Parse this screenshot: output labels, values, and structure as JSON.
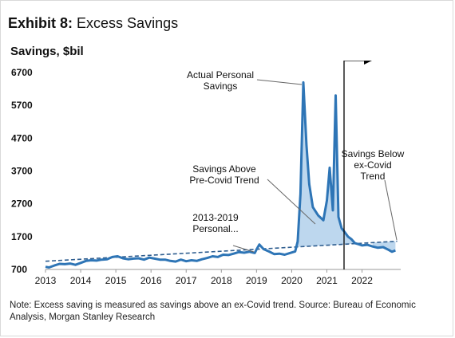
{
  "header": {
    "exhibit_label": "Exhibit 8:",
    "exhibit_title": "Excess Savings",
    "unit_label": "Savings,  $bil"
  },
  "footnote": "Note: Excess saving is measured as savings above an ex-Covid trend. Source: Bureau of Economic Analysis, Morgan Stanley Research",
  "chart_data": {
    "type": "line",
    "title": "Excess Savings",
    "ylabel": "Savings,  $bil",
    "xlabel": "",
    "ylim": [
      700,
      6700
    ],
    "xlim": [
      2013,
      2023.1
    ],
    "y_ticks": [
      700,
      1700,
      2700,
      3700,
      4700,
      5700,
      6700
    ],
    "x_ticks": [
      2013,
      2014,
      2015,
      2016,
      2017,
      2018,
      2019,
      2020,
      2021,
      2022
    ],
    "grid": false,
    "series": [
      {
        "name": "Actual Personal Savings",
        "color": "#2e75b6",
        "style": "solid",
        "x": [
          2013.0,
          2013.1,
          2013.25,
          2013.4,
          2013.55,
          2013.7,
          2013.85,
          2014.0,
          2014.15,
          2014.3,
          2014.45,
          2014.6,
          2014.75,
          2014.9,
          2015.05,
          2015.2,
          2015.35,
          2015.5,
          2015.65,
          2015.8,
          2015.95,
          2016.1,
          2016.25,
          2016.4,
          2016.55,
          2016.7,
          2016.85,
          2017.0,
          2017.15,
          2017.3,
          2017.45,
          2017.6,
          2017.75,
          2017.9,
          2018.05,
          2018.2,
          2018.35,
          2018.5,
          2018.65,
          2018.8,
          2018.95,
          2019.0,
          2019.08,
          2019.2,
          2019.35,
          2019.5,
          2019.65,
          2019.8,
          2019.95,
          2020.1,
          2020.17,
          2020.25,
          2020.33,
          2020.42,
          2020.5,
          2020.6,
          2020.75,
          2020.9,
          2021.0,
          2021.08,
          2021.17,
          2021.25,
          2021.33,
          2021.42,
          2021.5,
          2021.6,
          2021.7,
          2021.8,
          2021.9,
          2022.0,
          2022.15,
          2022.3,
          2022.45,
          2022.6,
          2022.75,
          2022.85,
          2022.95
        ],
        "values": [
          780,
          760,
          820,
          870,
          860,
          880,
          840,
          900,
          960,
          980,
          970,
          1000,
          1010,
          1080,
          1100,
          1040,
          1010,
          1030,
          1040,
          1000,
          1060,
          1030,
          1000,
          1000,
          960,
          940,
          1000,
          950,
          980,
          960,
          1010,
          1050,
          1100,
          1080,
          1150,
          1140,
          1180,
          1230,
          1210,
          1240,
          1200,
          1310,
          1460,
          1320,
          1250,
          1170,
          1180,
          1150,
          1200,
          1250,
          1550,
          3000,
          6400,
          4500,
          3300,
          2600,
          2350,
          2200,
          2800,
          3800,
          2500,
          6000,
          2300,
          1950,
          1850,
          1700,
          1620,
          1500,
          1470,
          1430,
          1450,
          1400,
          1360,
          1380,
          1300,
          1240,
          1280
        ]
      },
      {
        "name": "2013-2019 Personal...",
        "color": "#2e75b6",
        "style": "dashed",
        "x": [
          2013.0,
          2023.0
        ],
        "values": [
          950,
          1560
        ]
      }
    ],
    "annotations": [
      {
        "text": [
          "Actual Personal",
          "Savings"
        ]
      },
      {
        "text": [
          "Savings Above",
          "Pre-Covid Trend"
        ]
      },
      {
        "text": [
          "2013-2019",
          "Personal..."
        ]
      },
      {
        "text": [
          "Savings Below",
          "ex-Covid",
          "Trend"
        ]
      }
    ],
    "shaded_area": {
      "name": "Savings Above Pre-Covid Trend",
      "color": "#bdd7ee",
      "x_range": [
        2020.17,
        2022.1
      ]
    }
  }
}
